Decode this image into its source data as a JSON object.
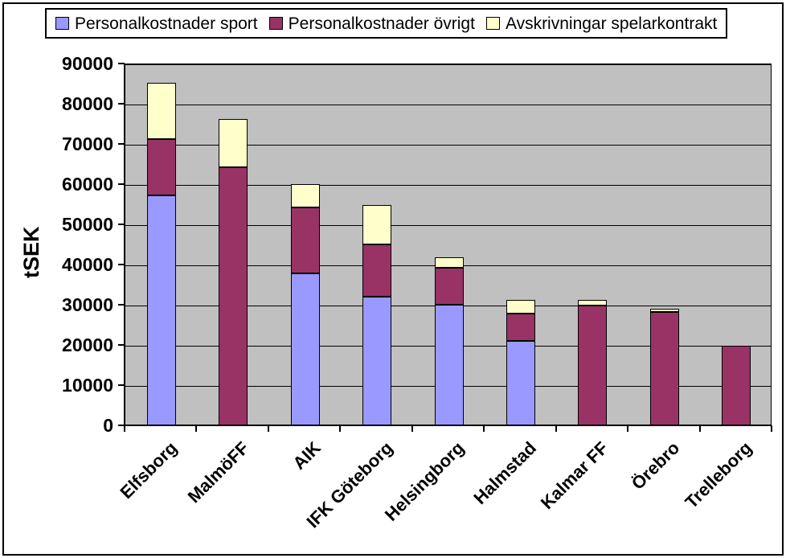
{
  "chart_data": {
    "type": "bar",
    "stacked": true,
    "ylabel": "tSEK",
    "xlabel": "",
    "ylim": [
      0,
      90000
    ],
    "ytick_step": 10000,
    "ytick_labels": [
      "0",
      "10000",
      "20000",
      "30000",
      "40000",
      "50000",
      "60000",
      "70000",
      "80000",
      "90000"
    ],
    "grid": true,
    "legend_position": "top",
    "plot_bg": "#C0C0C0",
    "categories": [
      "Elfsborg",
      "MalmöFF",
      "AIK",
      "IFK Göteborg",
      "Helsingborg",
      "Halmstad",
      "Kalmar FF",
      "Örebro",
      "Trelleborg"
    ],
    "series": [
      {
        "name": "Personalkostnader sport",
        "color": "#9999FF",
        "values": [
          57500,
          0,
          38000,
          32300,
          30200,
          21300,
          0,
          0,
          0
        ]
      },
      {
        "name": "Personalkostnader övrigt",
        "color": "#993366",
        "values": [
          14000,
          64500,
          16500,
          12900,
          9300,
          6700,
          30000,
          28500,
          20000
        ]
      },
      {
        "name": "Avskrivningar spelarkontrakt",
        "color": "#FFFFCC",
        "values": [
          14000,
          12000,
          5800,
          9800,
          2500,
          3500,
          1500,
          700,
          0
        ]
      }
    ]
  },
  "layout_colors": {
    "plot_background": "#C0C0C0",
    "gridline": "#000000",
    "figure_background": "#FFFFFF",
    "border": "#000000",
    "text": "#000000"
  }
}
